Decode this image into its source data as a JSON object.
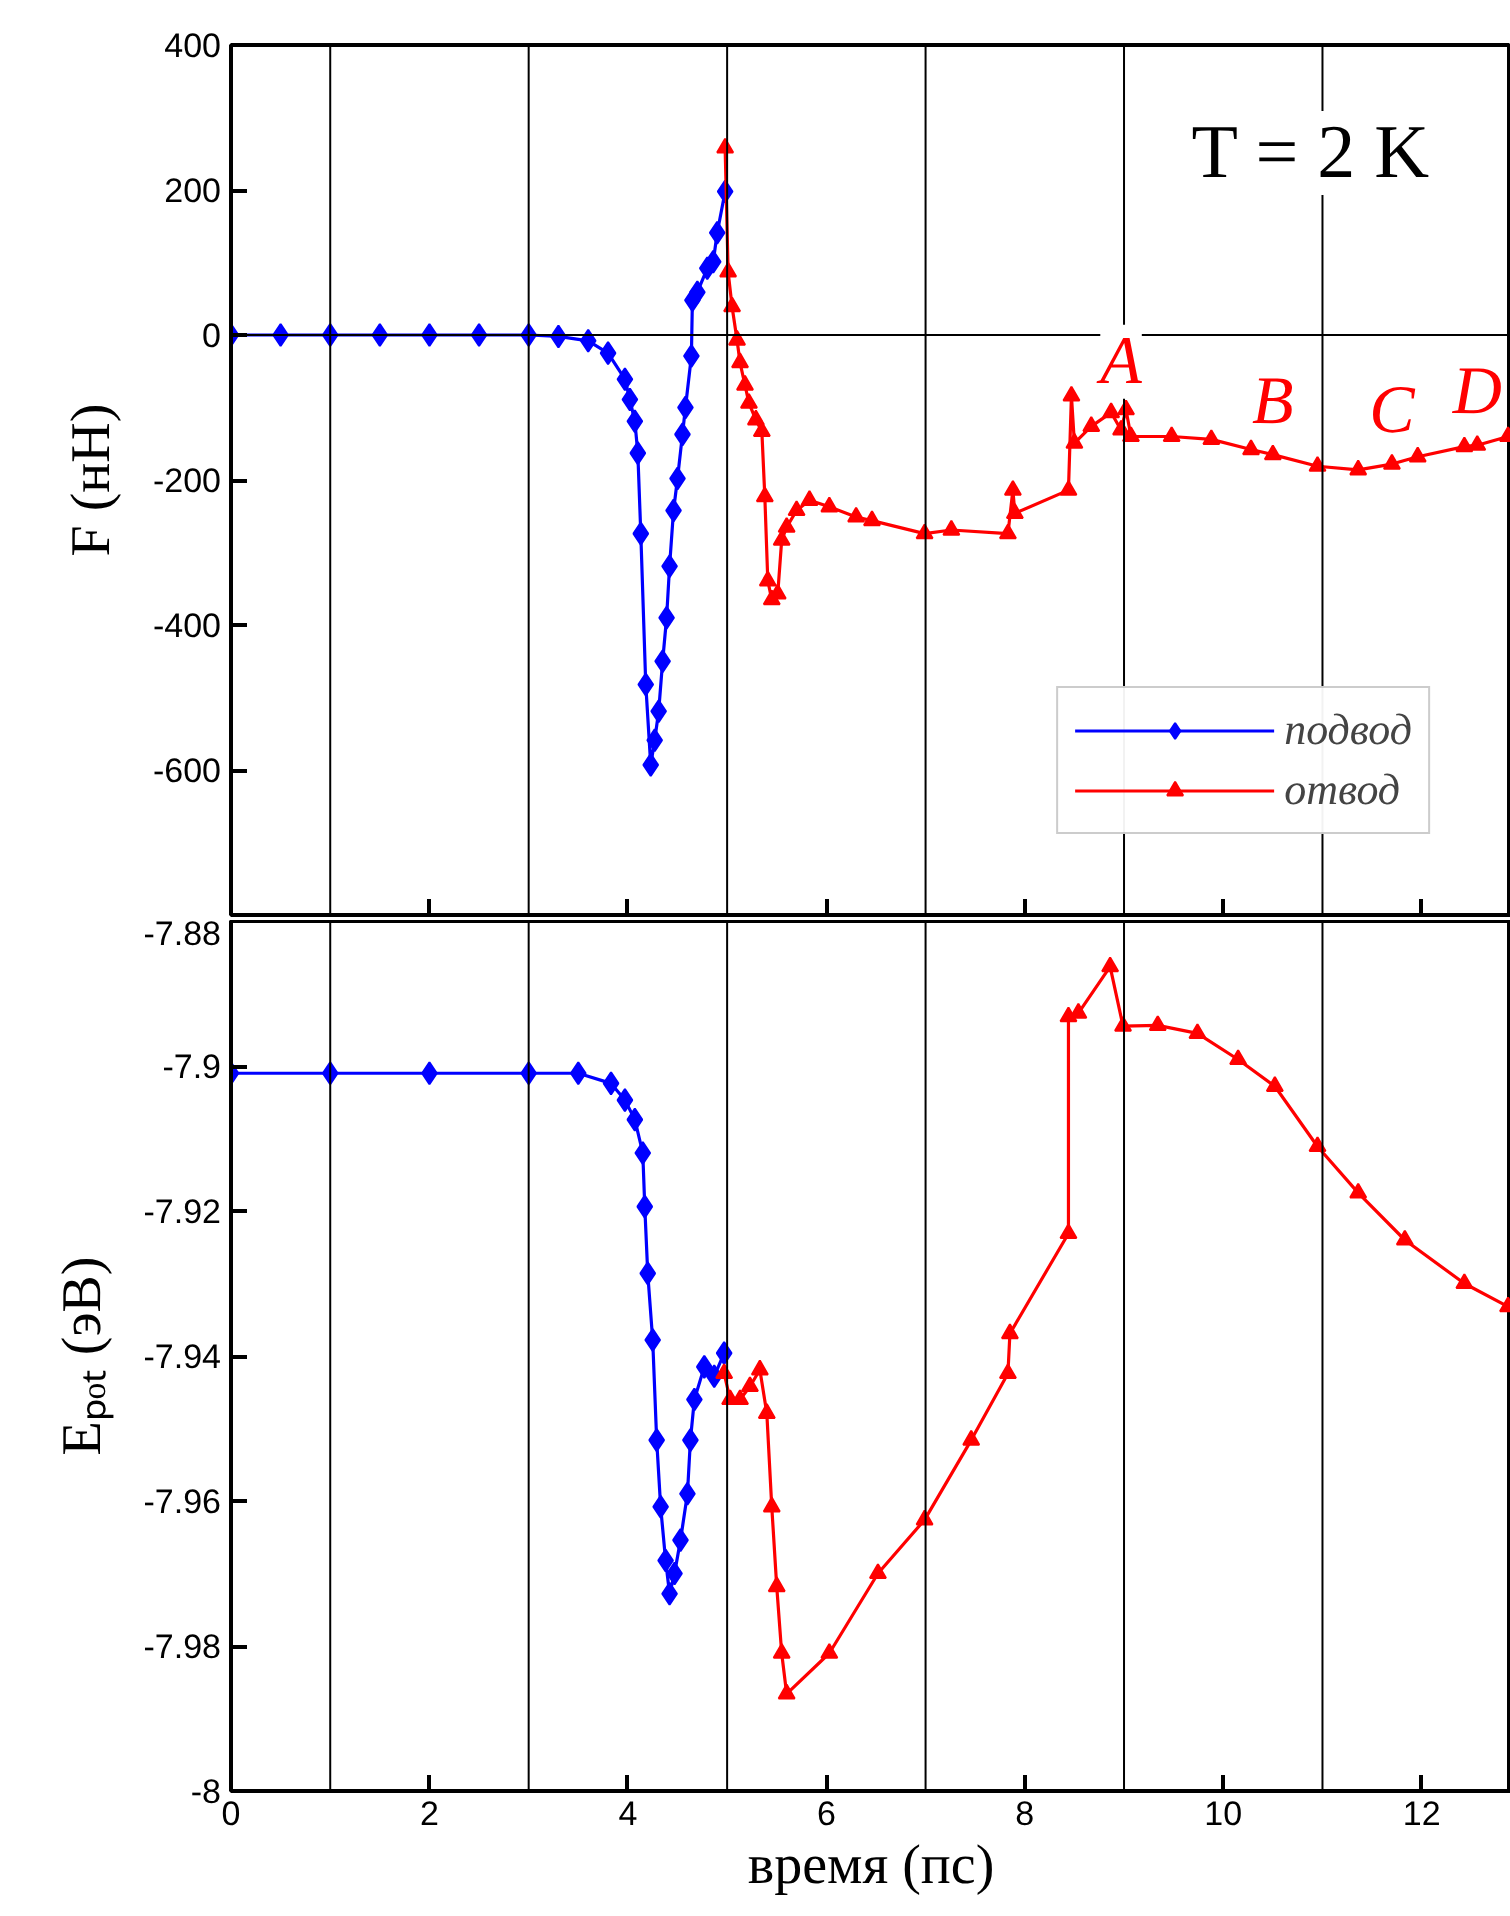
{
  "chart_data": [
    {
      "type": "line",
      "ylabel": "F (нН)",
      "xlim": [
        0,
        12.9
      ],
      "ylim": [
        -800,
        400
      ],
      "xticks": [
        0,
        2,
        4,
        6,
        8,
        10,
        12
      ],
      "yticks": [
        400,
        200,
        0,
        -200,
        -400,
        -600,
        {
          "value": -800,
          "label": null
        }
      ],
      "tick_labels": "y",
      "grid": false,
      "legend": "bottom right",
      "annotations": [
        "T = 2 K",
        {
          "text": "A",
          "x": 8.97,
          "y": -110
        },
        {
          "text": "B",
          "x": 10.5,
          "y": -165
        },
        {
          "text": "C",
          "x": 11.7,
          "y": -178
        },
        {
          "text": "D",
          "x": 12.56,
          "y": -152
        }
      ],
      "ref_lines": [
        {
          "axis": "x",
          "value": 1,
          "color": "#000000"
        },
        {
          "axis": "x",
          "value": 3,
          "color": "#000000"
        },
        {
          "axis": "x",
          "value": 5,
          "color": "#000000"
        },
        {
          "axis": "x",
          "value": 7,
          "color": "#000000"
        },
        {
          "axis": "x",
          "value": 9,
          "color": "#000000"
        },
        {
          "axis": "x",
          "value": 11,
          "color": "#000000"
        },
        {
          "axis": "y",
          "value": 0,
          "color": "#000000"
        }
      ],
      "series": [
        {
          "name": "подвод",
          "color": "#0000ff",
          "marker": "diamond",
          "x": [
            0,
            0.5,
            1,
            1.5,
            2,
            2.5,
            3,
            3.3,
            3.6,
            3.8,
            3.97,
            4.02,
            4.07,
            4.1,
            4.13,
            4.18,
            4.23,
            4.27,
            4.31,
            4.35,
            4.39,
            4.42,
            4.46,
            4.5,
            4.55,
            4.58,
            4.64,
            4.65,
            4.7,
            4.8,
            4.86,
            4.9,
            4.98
          ],
          "values": [
            0,
            0,
            0,
            0,
            0,
            0,
            0,
            -2,
            -8,
            -25,
            -61,
            -89,
            -119,
            -163,
            -274,
            -482,
            -593,
            -559,
            -519,
            -450,
            -390,
            -319,
            -242,
            -198,
            -137,
            -100,
            -29,
            48,
            59,
            92,
            101,
            141,
            198
          ]
        },
        {
          "name": "отвод",
          "color": "#ff0000",
          "marker": "triangle",
          "x": [
            4.98,
            5.01,
            5.05,
            5.1,
            5.13,
            5.18,
            5.22,
            5.29,
            5.35,
            5.38,
            5.41,
            5.45,
            5.51,
            5.55,
            5.6,
            5.7,
            5.83,
            6.03,
            6.3,
            6.46,
            6.99,
            7.26,
            7.83,
            7.88,
            7.9,
            8.44,
            8.47,
            8.5,
            8.67,
            8.87,
            8.97,
            9.02,
            9.07,
            9.48,
            9.88,
            10.28,
            10.5,
            10.95,
            11.36,
            11.7,
            11.96,
            12.43,
            12.56,
            12.87
          ],
          "values": [
            258,
            87,
            39,
            -7,
            -38,
            -69,
            -94,
            -117,
            -133,
            -223,
            -339,
            -365,
            -357,
            -283,
            -265,
            -242,
            -228,
            -237,
            -251,
            -256,
            -274,
            -269,
            -274,
            -214,
            -246,
            -214,
            -84,
            -149,
            -126,
            -107,
            -131,
            -103,
            -140,
            -140,
            -144,
            -158,
            -165,
            -181,
            -186,
            -178,
            -168,
            -154,
            -152,
            -140
          ]
        }
      ]
    },
    {
      "type": "line",
      "xlabel": "время (пс)",
      "ylabel": "Eₚₒₜ (эВ)",
      "xlim": [
        0,
        12.9
      ],
      "ylim": [
        -8,
        -7.88
      ],
      "xticks": [
        0,
        2,
        4,
        6,
        8,
        10,
        12
      ],
      "yticks": [
        -7.88,
        -7.9,
        -7.92,
        -7.94,
        -7.96,
        -7.98,
        -8
      ],
      "grid": false,
      "ref_lines": [
        {
          "axis": "x",
          "value": 1,
          "color": "#000000"
        },
        {
          "axis": "x",
          "value": 3,
          "color": "#000000"
        },
        {
          "axis": "x",
          "value": 5,
          "color": "#000000"
        },
        {
          "axis": "x",
          "value": 7,
          "color": "#000000"
        },
        {
          "axis": "x",
          "value": 9,
          "color": "#000000"
        },
        {
          "axis": "x",
          "value": 11,
          "color": "#000000"
        }
      ],
      "series": [
        {
          "color": "#0000ff",
          "marker": "diamond",
          "x": [
            0,
            1,
            2,
            3,
            3.5,
            3.83,
            3.97,
            4.07,
            4.15,
            4.17,
            4.2,
            4.25,
            4.29,
            4.33,
            4.38,
            4.42,
            4.47,
            4.53,
            4.6,
            4.63,
            4.67,
            4.77,
            4.87,
            4.97
          ],
          "values": [
            -7.901,
            -7.901,
            -7.901,
            -7.901,
            -7.901,
            -7.9024,
            -7.9047,
            -7.9074,
            -7.912,
            -7.9194,
            -7.9286,
            -7.9378,
            -7.9516,
            -7.9608,
            -7.9682,
            -7.9728,
            -7.97,
            -7.9654,
            -7.959,
            -7.9516,
            -7.946,
            -7.9415,
            -7.9428,
            -7.9396
          ]
        },
        {
          "color": "#ff0000",
          "marker": "triangle",
          "x": [
            4.97,
            5.03,
            5.13,
            5.23,
            5.33,
            5.4,
            5.45,
            5.5,
            5.55,
            5.6,
            6.03,
            6.52,
            6.99,
            7.46,
            7.83,
            7.85,
            8.44,
            8.44,
            8.54,
            8.86,
            8.99,
            9.34,
            9.74,
            10.15,
            10.52,
            10.95,
            11.36,
            11.83,
            12.43,
            12.87
          ],
          "values": [
            -7.9424,
            -7.946,
            -7.946,
            -7.9442,
            -7.9419,
            -7.9479,
            -7.9608,
            -7.9718,
            -7.981,
            -7.9866,
            -7.981,
            -7.97,
            -7.9626,
            -7.9516,
            -7.9424,
            -7.9369,
            -7.9231,
            -7.8932,
            -7.8927,
            -7.8863,
            -7.8945,
            -7.8944,
            -7.8955,
            -7.8991,
            -7.9028,
            -7.9111,
            -7.9175,
            -7.924,
            -7.93,
            -7.9332
          ]
        }
      ]
    }
  ]
}
